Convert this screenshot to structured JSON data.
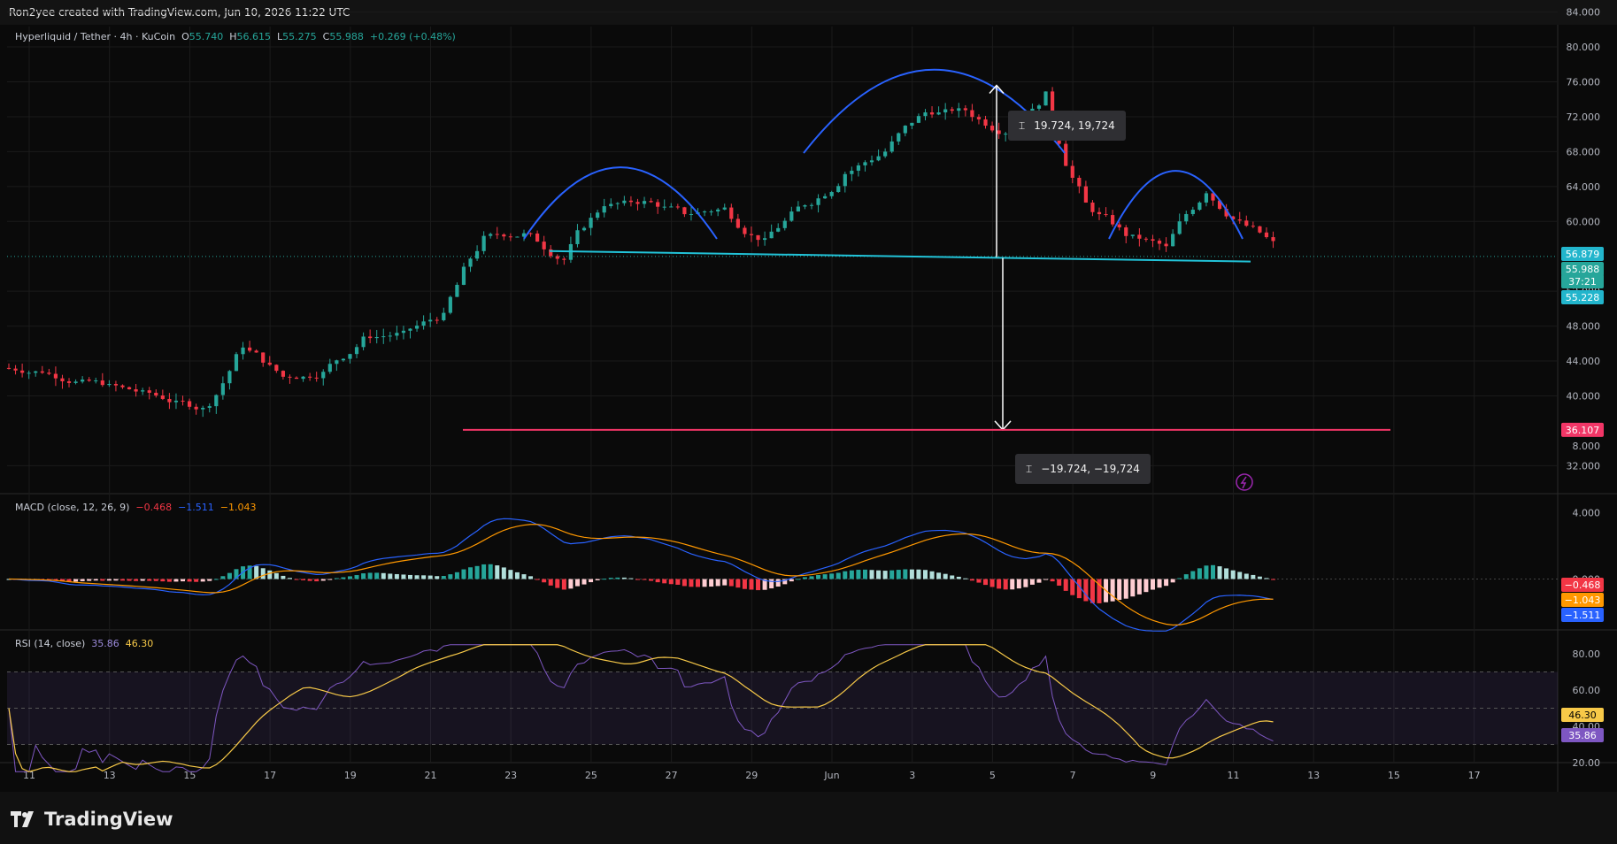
{
  "header": {
    "credit": "Ron2yee created with TradingView.com, Jun 10, 2026 11:22 UTC"
  },
  "symbol": {
    "name": "Hyperliquid / Tether · 4h · KuCoin",
    "o_label": "O",
    "o": "55.740",
    "h_label": "H",
    "h": "56.615",
    "l_label": "L",
    "l": "55.275",
    "c_label": "C",
    "c": "55.988",
    "change": "+0.269 (+0.48%)"
  },
  "price_axis": {
    "ticks": [
      "84.000",
      "80.000",
      "76.000",
      "72.000",
      "68.000",
      "64.000",
      "60.000",
      "52.000",
      "48.000",
      "44.000",
      "40.000",
      "32.000"
    ],
    "tags": {
      "high": "56.879",
      "close": "55.988",
      "countdown": "37:21",
      "low": "55.228",
      "target": "36.107"
    }
  },
  "time_axis": {
    "ticks": [
      "11",
      "13",
      "15",
      "17",
      "19",
      "21",
      "23",
      "25",
      "27",
      "29",
      "Jun",
      "3",
      "5",
      "7",
      "9",
      "11",
      "13",
      "15",
      "17"
    ]
  },
  "measure_up": {
    "label": "19.724, 19,724"
  },
  "measure_down": {
    "label": "−19.724, −19,724"
  },
  "macd": {
    "title": "MACD (close, 12, 26, 9)",
    "hist": "−0.468",
    "macd": "−1.511",
    "signal": "−1.043",
    "ticks": [
      "8.000",
      "4.000",
      "0.000"
    ],
    "tags": {
      "hist": "−0.468",
      "signal": "−1.043",
      "macd": "−1.511"
    }
  },
  "rsi": {
    "title": "RSI (14, close)",
    "rsi": "35.86",
    "ma": "46.30",
    "ticks": [
      "80.00",
      "60.00",
      "40.00",
      "20.00"
    ],
    "tags": {
      "ma": "46.30",
      "rsi": "35.86"
    }
  },
  "brand": {
    "name": "TradingView"
  },
  "colors": {
    "up": "#26a69a",
    "down": "#f23645",
    "neckline": "#22c3d8",
    "arc": "#2962ff",
    "target": "#f23667",
    "macd": "#2962ff",
    "signal": "#ff9800",
    "rsi": "#7e57c2",
    "rsi_ma": "#f7c948"
  },
  "chart_data": {
    "type": "line",
    "title": "Hyperliquid / Tether · 4h · KuCoin",
    "x": [
      "May 10",
      "May 11",
      "May 12",
      "May 13",
      "May 14",
      "May 15",
      "May 16",
      "May 17",
      "May 18",
      "May 19",
      "May 20",
      "May 21",
      "May 22",
      "May 23",
      "May 24",
      "May 25",
      "May 26",
      "May 27",
      "May 28",
      "May 29",
      "May 30",
      "May 31",
      "Jun 1",
      "Jun 2",
      "Jun 3",
      "Jun 4",
      "Jun 5",
      "Jun 6",
      "Jun 7",
      "Jun 8",
      "Jun 9",
      "Jun 10"
    ],
    "series": [
      {
        "name": "C",
        "values": [
          42.8,
          41.6,
          40.9,
          39.8,
          38.5,
          45.8,
          42.2,
          42.6,
          46.5,
          47.2,
          49.2,
          58.0,
          58.5,
          55.6,
          62.0,
          62.2,
          61.0,
          61.5,
          57.8,
          62.0,
          65.5,
          68.0,
          72.5,
          72.8,
          70.2,
          74.5,
          62.0,
          58.5,
          57.0,
          63.5,
          59.5,
          55.988
        ]
      }
    ],
    "ylim": [
      30,
      84
    ],
    "annotations": {
      "neckline": [
        56.6,
        55.7
      ],
      "target": 36.107,
      "measured_move": 19.724
    }
  }
}
